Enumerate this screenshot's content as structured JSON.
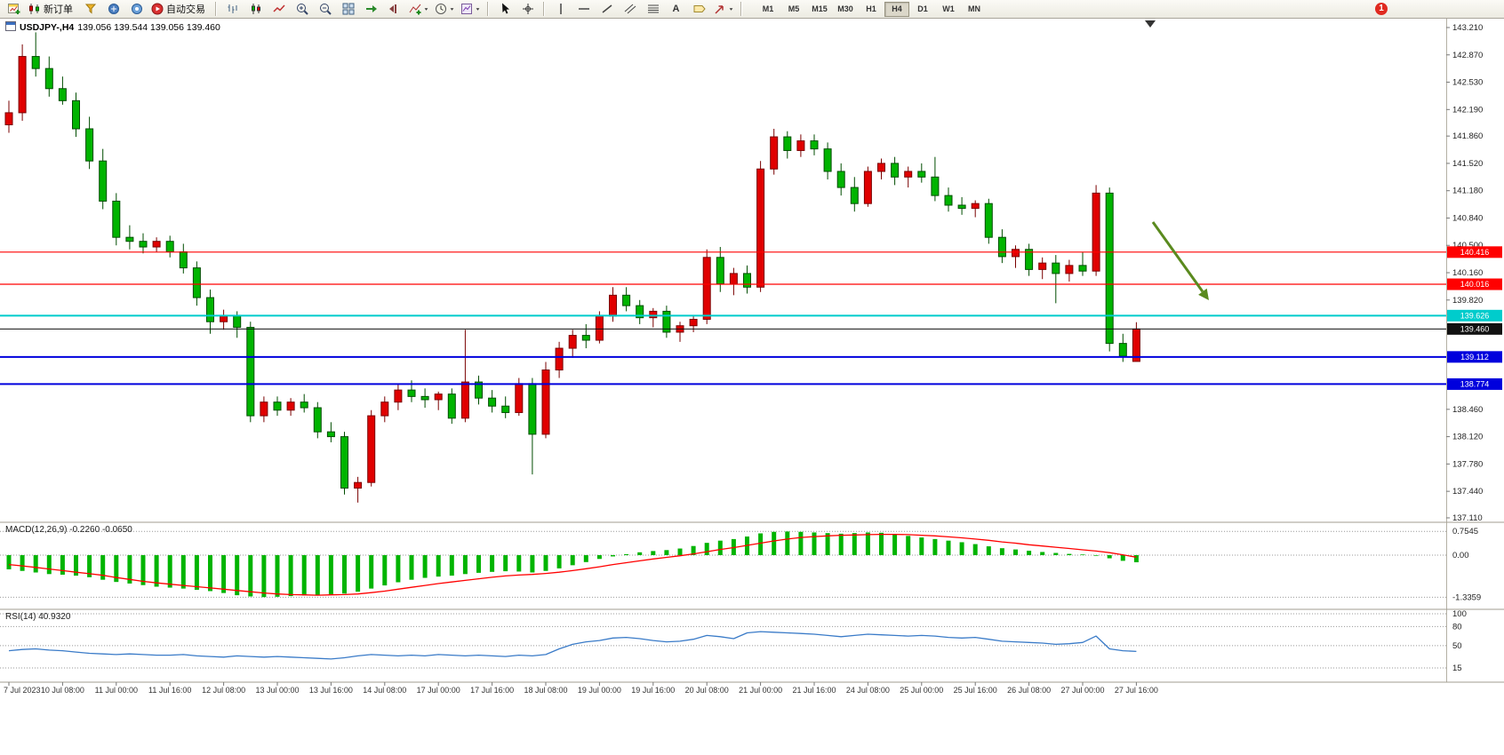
{
  "toolbar": {
    "new_order": "新订单",
    "auto_trading": "自动交易",
    "timeframes": [
      "M1",
      "M5",
      "M15",
      "M30",
      "H1",
      "H4",
      "D1",
      "W1",
      "MN"
    ],
    "active_timeframe": "H4",
    "badge_count": "1",
    "text_tool_glyph": "A"
  },
  "chart_header": {
    "symbol": "USDJPY-,H4",
    "ohlc": "139.056 139.544 139.056 139.460"
  },
  "panels": {
    "macd_label": "MACD(12,26,9) -0.2260 -0.0650",
    "rsi_label": "RSI(14) 40.9320"
  },
  "colors": {
    "bull": "#e00000",
    "bear": "#00b400",
    "resistance_line": "#ff0000",
    "pivot_line": "#00cccc",
    "price_line": "#111111",
    "support_line": "#0000dd",
    "macd_histogram": "#00b400",
    "macd_signal": "#ff0000",
    "rsi_line": "#3a7bc8",
    "arrow": "#5a8a1e"
  },
  "chart_data": [
    {
      "type": "candlestick",
      "symbol": "USDJPY-",
      "timeframe": "H4",
      "current_ohlc": {
        "open": 139.056,
        "high": 139.544,
        "low": 139.056,
        "close": 139.46
      },
      "ylim": [
        137.11,
        143.21
      ],
      "y_ticks": [
        143.21,
        142.87,
        142.53,
        142.19,
        141.86,
        141.52,
        141.18,
        140.84,
        140.5,
        140.16,
        139.82,
        138.46,
        138.12,
        137.78,
        137.44,
        137.11
      ],
      "x_labels": [
        "7 Jul 2023",
        "10 Jul 08:00",
        "11 Jul 00:00",
        "11 Jul 16:00",
        "12 Jul 08:00",
        "13 Jul 00:00",
        "13 Jul 16:00",
        "14 Jul 08:00",
        "17 Jul 00:00",
        "17 Jul 16:00",
        "18 Jul 08:00",
        "19 Jul 00:00",
        "19 Jul 16:00",
        "20 Jul 08:00",
        "21 Jul 00:00",
        "21 Jul 16:00",
        "24 Jul 08:00",
        "25 Jul 00:00",
        "25 Jul 16:00",
        "26 Jul 08:00",
        "27 Jul 00:00",
        "27 Jul 16:00"
      ],
      "bars_per_label": 4,
      "hlines": [
        {
          "price": 140.416,
          "color": "#ff0000",
          "width": 1.2,
          "label": "140.416"
        },
        {
          "price": 140.016,
          "color": "#ff0000",
          "width": 1.2,
          "label": "140.016"
        },
        {
          "price": 139.626,
          "color": "#00cccc",
          "width": 2,
          "label": "139.626"
        },
        {
          "price": 139.46,
          "color": "#111111",
          "width": 1,
          "label": "139.460"
        },
        {
          "price": 139.112,
          "color": "#0000dd",
          "width": 2,
          "label": "139.112"
        },
        {
          "price": 138.774,
          "color": "#0000dd",
          "width": 2,
          "label": "138.774"
        }
      ],
      "candles": [
        [
          142.0,
          142.3,
          141.9,
          142.15
        ],
        [
          142.15,
          143.0,
          142.05,
          142.85
        ],
        [
          142.85,
          143.15,
          142.6,
          142.7
        ],
        [
          142.7,
          142.85,
          142.35,
          142.45
        ],
        [
          142.45,
          142.6,
          142.25,
          142.3
        ],
        [
          142.3,
          142.4,
          141.85,
          141.95
        ],
        [
          141.95,
          142.1,
          141.45,
          141.55
        ],
        [
          141.55,
          141.7,
          140.95,
          141.05
        ],
        [
          141.05,
          141.15,
          140.5,
          140.6
        ],
        [
          140.6,
          140.75,
          140.45,
          140.55
        ],
        [
          140.55,
          140.65,
          140.4,
          140.48
        ],
        [
          140.48,
          140.6,
          140.42,
          140.55
        ],
        [
          140.55,
          140.62,
          140.35,
          140.42
        ],
        [
          140.42,
          140.52,
          140.15,
          140.22
        ],
        [
          140.22,
          140.3,
          139.75,
          139.85
        ],
        [
          139.85,
          139.95,
          139.4,
          139.55
        ],
        [
          139.55,
          139.7,
          139.45,
          139.62
        ],
        [
          139.62,
          139.68,
          139.35,
          139.48
        ],
        [
          139.48,
          139.55,
          138.3,
          138.38
        ],
        [
          138.38,
          138.62,
          138.3,
          138.55
        ],
        [
          138.55,
          138.62,
          138.38,
          138.45
        ],
        [
          138.45,
          138.6,
          138.38,
          138.55
        ],
        [
          138.55,
          138.65,
          138.42,
          138.48
        ],
        [
          138.48,
          138.55,
          138.1,
          138.18
        ],
        [
          138.18,
          138.3,
          138.05,
          138.12
        ],
        [
          138.12,
          138.18,
          137.4,
          137.48
        ],
        [
          137.48,
          137.62,
          137.3,
          137.55
        ],
        [
          137.55,
          138.45,
          137.5,
          138.38
        ],
        [
          138.38,
          138.62,
          138.3,
          138.55
        ],
        [
          138.55,
          138.78,
          138.45,
          138.7
        ],
        [
          138.7,
          138.82,
          138.55,
          138.62
        ],
        [
          138.62,
          138.72,
          138.48,
          138.58
        ],
        [
          138.58,
          138.68,
          138.45,
          138.65
        ],
        [
          138.65,
          138.72,
          138.28,
          138.35
        ],
        [
          138.35,
          139.45,
          138.3,
          138.8
        ],
        [
          138.8,
          138.88,
          138.52,
          138.6
        ],
        [
          138.6,
          138.7,
          138.42,
          138.5
        ],
        [
          138.5,
          138.62,
          138.35,
          138.42
        ],
        [
          138.42,
          138.85,
          138.38,
          138.78
        ],
        [
          138.78,
          138.85,
          137.65,
          138.15
        ],
        [
          138.15,
          139.05,
          138.1,
          138.95
        ],
        [
          138.95,
          139.3,
          138.85,
          139.22
        ],
        [
          139.22,
          139.45,
          139.1,
          139.38
        ],
        [
          139.38,
          139.52,
          139.22,
          139.32
        ],
        [
          139.32,
          139.68,
          139.28,
          139.62
        ],
        [
          139.62,
          139.98,
          139.55,
          139.88
        ],
        [
          139.88,
          139.98,
          139.68,
          139.75
        ],
        [
          139.75,
          139.82,
          139.52,
          139.6
        ],
        [
          139.6,
          139.72,
          139.48,
          139.68
        ],
        [
          139.68,
          139.75,
          139.35,
          139.42
        ],
        [
          139.42,
          139.55,
          139.3,
          139.5
        ],
        [
          139.5,
          139.62,
          139.42,
          139.58
        ],
        [
          139.58,
          140.45,
          139.52,
          140.35
        ],
        [
          140.35,
          140.48,
          139.92,
          140.02
        ],
        [
          140.02,
          140.22,
          139.88,
          140.15
        ],
        [
          140.15,
          140.25,
          139.9,
          139.98
        ],
        [
          139.98,
          141.55,
          139.92,
          141.45
        ],
        [
          141.45,
          141.95,
          141.38,
          141.85
        ],
        [
          141.85,
          141.92,
          141.58,
          141.68
        ],
        [
          141.68,
          141.88,
          141.6,
          141.8
        ],
        [
          141.8,
          141.88,
          141.62,
          141.7
        ],
        [
          141.7,
          141.78,
          141.32,
          141.42
        ],
        [
          141.42,
          141.52,
          141.12,
          141.22
        ],
        [
          141.22,
          141.35,
          140.92,
          141.02
        ],
        [
          141.02,
          141.48,
          140.98,
          141.42
        ],
        [
          141.42,
          141.58,
          141.32,
          141.52
        ],
        [
          141.52,
          141.6,
          141.25,
          141.35
        ],
        [
          141.35,
          141.48,
          141.22,
          141.42
        ],
        [
          141.42,
          141.52,
          141.28,
          141.35
        ],
        [
          141.35,
          141.6,
          141.05,
          141.12
        ],
        [
          141.12,
          141.22,
          140.92,
          141.0
        ],
        [
          141.0,
          141.1,
          140.88,
          140.96
        ],
        [
          140.96,
          141.06,
          140.85,
          141.02
        ],
        [
          141.02,
          141.08,
          140.52,
          140.6
        ],
        [
          140.6,
          140.7,
          140.28,
          140.36
        ],
        [
          140.36,
          140.5,
          140.22,
          140.45
        ],
        [
          140.45,
          140.52,
          140.12,
          140.2
        ],
        [
          140.2,
          140.35,
          140.08,
          140.28
        ],
        [
          140.28,
          140.38,
          139.78,
          140.15
        ],
        [
          140.15,
          140.32,
          140.05,
          140.25
        ],
        [
          140.25,
          140.42,
          140.12,
          140.18
        ],
        [
          140.18,
          141.25,
          140.12,
          141.15
        ],
        [
          141.15,
          141.22,
          139.18,
          139.28
        ],
        [
          139.28,
          139.4,
          139.05,
          139.12
        ],
        [
          139.056,
          139.544,
          139.056,
          139.46
        ]
      ]
    },
    {
      "type": "bar",
      "name": "MACD(12,26,9)",
      "current_macd": -0.226,
      "current_signal": -0.065,
      "ylim": [
        -1.3359,
        0.7545
      ],
      "y_ticks": [
        {
          "v": 0.7545,
          "label": "0.7545"
        },
        {
          "v": 0,
          "label": "0.00"
        },
        {
          "v": -1.3359,
          "label": "-1.3359"
        }
      ],
      "values": [
        -0.45,
        -0.5,
        -0.55,
        -0.6,
        -0.62,
        -0.65,
        -0.7,
        -0.78,
        -0.85,
        -0.9,
        -0.95,
        -1.0,
        -1.03,
        -1.06,
        -1.1,
        -1.14,
        -1.2,
        -1.27,
        -1.31,
        -1.33,
        -1.32,
        -1.3,
        -1.28,
        -1.26,
        -1.24,
        -1.22,
        -1.16,
        -1.06,
        -0.96,
        -0.86,
        -0.78,
        -0.72,
        -0.68,
        -0.65,
        -0.6,
        -0.56,
        -0.53,
        -0.51,
        -0.52,
        -0.55,
        -0.5,
        -0.42,
        -0.32,
        -0.22,
        -0.12,
        -0.04,
        0.03,
        0.09,
        0.13,
        0.16,
        0.21,
        0.29,
        0.39,
        0.46,
        0.51,
        0.59,
        0.69,
        0.74,
        0.75,
        0.74,
        0.72,
        0.7,
        0.68,
        0.7,
        0.72,
        0.71,
        0.67,
        0.61,
        0.56,
        0.51,
        0.46,
        0.41,
        0.35,
        0.28,
        0.22,
        0.18,
        0.14,
        0.1,
        0.07,
        0.04,
        0.02,
        -0.02,
        -0.1,
        -0.18,
        -0.226
      ],
      "signal": [
        -0.3,
        -0.34,
        -0.39,
        -0.44,
        -0.49,
        -0.54,
        -0.59,
        -0.64,
        -0.71,
        -0.77,
        -0.83,
        -0.88,
        -0.92,
        -0.96,
        -1.0,
        -1.04,
        -1.08,
        -1.12,
        -1.16,
        -1.2,
        -1.23,
        -1.25,
        -1.26,
        -1.27,
        -1.26,
        -1.25,
        -1.23,
        -1.19,
        -1.14,
        -1.08,
        -1.02,
        -0.96,
        -0.9,
        -0.85,
        -0.8,
        -0.75,
        -0.7,
        -0.66,
        -0.63,
        -0.61,
        -0.58,
        -0.54,
        -0.49,
        -0.43,
        -0.37,
        -0.3,
        -0.24,
        -0.18,
        -0.12,
        -0.07,
        -0.02,
        0.04,
        0.11,
        0.18,
        0.24,
        0.31,
        0.38,
        0.45,
        0.51,
        0.56,
        0.59,
        0.61,
        0.63,
        0.64,
        0.65,
        0.66,
        0.66,
        0.65,
        0.63,
        0.61,
        0.58,
        0.55,
        0.51,
        0.47,
        0.42,
        0.38,
        0.33,
        0.29,
        0.25,
        0.21,
        0.17,
        0.13,
        0.08,
        0.01,
        -0.065
      ]
    },
    {
      "type": "line",
      "name": "RSI(14)",
      "current": 40.932,
      "levels": [
        100,
        80,
        50,
        15
      ],
      "values": [
        42,
        44,
        45,
        43,
        42,
        40,
        38,
        37,
        36,
        37,
        36,
        35,
        35,
        36,
        34,
        33,
        32,
        34,
        33,
        32,
        33,
        32,
        31,
        30,
        29,
        31,
        34,
        36,
        35,
        34,
        35,
        34,
        36,
        35,
        34,
        35,
        34,
        33,
        35,
        34,
        36,
        45,
        52,
        56,
        58,
        62,
        63,
        61,
        58,
        56,
        57,
        60,
        66,
        64,
        61,
        70,
        72,
        71,
        70,
        69,
        68,
        66,
        64,
        66,
        68,
        67,
        66,
        65,
        66,
        65,
        63,
        62,
        63,
        60,
        57,
        56,
        55,
        54,
        52,
        53,
        55,
        65,
        45,
        42,
        40.93
      ]
    }
  ]
}
